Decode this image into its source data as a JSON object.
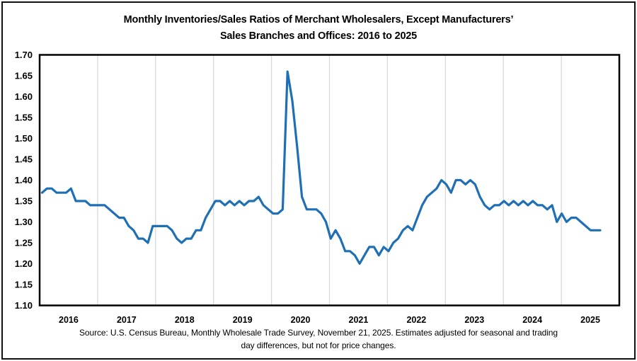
{
  "title": {
    "line1": "Monthly Inventories/Sales Ratios of Merchant Wholesalers, Except Manufacturers’",
    "line2": "Sales Branches and Offices: 2016 to 2025"
  },
  "source": {
    "line1": "Source: U.S. Census Bureau, Monthly Wholesale Trade Survey, November 21, 2025. Estimates adjusted for seasonal and trading",
    "line2": "day differences, but not for price changes."
  },
  "colors": {
    "line": "#1F6FB5",
    "grid": "#D9D9D9",
    "axis": "#000000",
    "background": "#FFFFFF",
    "text": "#000000"
  },
  "chart_data": {
    "type": "line",
    "title": "Monthly Inventories/Sales Ratios of Merchant Wholesalers, Except Manufacturers’ Sales Branches and Offices: 2016 to 2025",
    "xlabel": "",
    "ylabel": "",
    "legend": "none",
    "grid": "vertical-year-boundaries-only",
    "y_axis": {
      "min": 1.1,
      "max": 1.7,
      "step": 0.05,
      "tick_labels": [
        "1.70",
        "1.65",
        "1.60",
        "1.55",
        "1.50",
        "1.45",
        "1.40",
        "1.35",
        "1.30",
        "1.25",
        "1.20",
        "1.15",
        "1.10"
      ]
    },
    "x_axis": {
      "tick_labels": [
        "2016",
        "2017",
        "2018",
        "2019",
        "2020",
        "2021",
        "2022",
        "2023",
        "2024",
        "2025"
      ]
    },
    "series": [
      {
        "name": "Inventories/Sales Ratio",
        "start_month": "2016-01",
        "end_month": "2025-09",
        "frequency": "monthly",
        "values": [
          1.37,
          1.38,
          1.38,
          1.37,
          1.37,
          1.37,
          1.38,
          1.35,
          1.35,
          1.35,
          1.34,
          1.34,
          1.34,
          1.34,
          1.33,
          1.32,
          1.31,
          1.31,
          1.29,
          1.28,
          1.26,
          1.26,
          1.25,
          1.29,
          1.29,
          1.29,
          1.29,
          1.28,
          1.26,
          1.25,
          1.26,
          1.26,
          1.28,
          1.28,
          1.31,
          1.33,
          1.35,
          1.35,
          1.34,
          1.35,
          1.34,
          1.35,
          1.34,
          1.35,
          1.35,
          1.36,
          1.34,
          1.33,
          1.32,
          1.32,
          1.33,
          1.66,
          1.59,
          1.48,
          1.36,
          1.33,
          1.33,
          1.33,
          1.32,
          1.3,
          1.26,
          1.28,
          1.26,
          1.23,
          1.23,
          1.22,
          1.2,
          1.22,
          1.24,
          1.24,
          1.22,
          1.24,
          1.23,
          1.25,
          1.26,
          1.28,
          1.29,
          1.28,
          1.31,
          1.34,
          1.36,
          1.37,
          1.38,
          1.4,
          1.39,
          1.37,
          1.4,
          1.4,
          1.39,
          1.4,
          1.39,
          1.36,
          1.34,
          1.33,
          1.34,
          1.34,
          1.35,
          1.34,
          1.35,
          1.34,
          1.35,
          1.34,
          1.35,
          1.34,
          1.34,
          1.33,
          1.34,
          1.3,
          1.32,
          1.3,
          1.31,
          1.31,
          1.3,
          1.29,
          1.28,
          1.28,
          1.28
        ]
      }
    ]
  }
}
